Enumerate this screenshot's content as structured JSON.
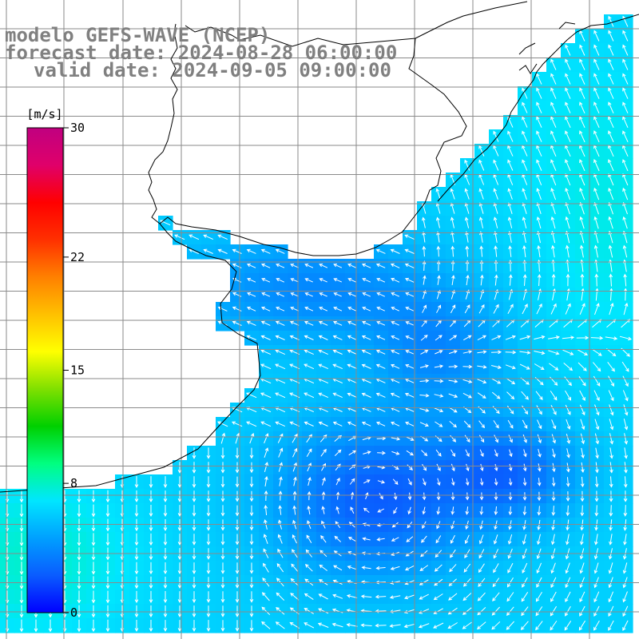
{
  "title": {
    "model": "modelo GEFS-WAVE (NCEP)",
    "forecast": "forecast date: 2024-08-28 06:00:00",
    "valid": "valid date: 2024-09-05 09:00:00"
  },
  "colorbar": {
    "unit": "[m/s]",
    "min": 0,
    "max": 30,
    "ticks": [
      {
        "value": 30,
        "label": "30"
      },
      {
        "value": 22,
        "label": "22"
      },
      {
        "value": 15,
        "label": "15"
      },
      {
        "value": 8,
        "label": "8"
      },
      {
        "value": 0,
        "label": "0"
      }
    ],
    "colors": [
      "#0000ff",
      "#0a5cff",
      "#00a0ff",
      "#00e6ff",
      "#00ff80",
      "#00d000",
      "#80e000",
      "#ffff00",
      "#ffc000",
      "#ff8000",
      "#ff3000",
      "#ff0000",
      "#e0006a",
      "#c00080"
    ]
  },
  "map": {
    "variable": "wind speed",
    "land_color": "#ffffff",
    "coast_color": "#000000",
    "grid_color": "#8a8a8a"
  }
}
